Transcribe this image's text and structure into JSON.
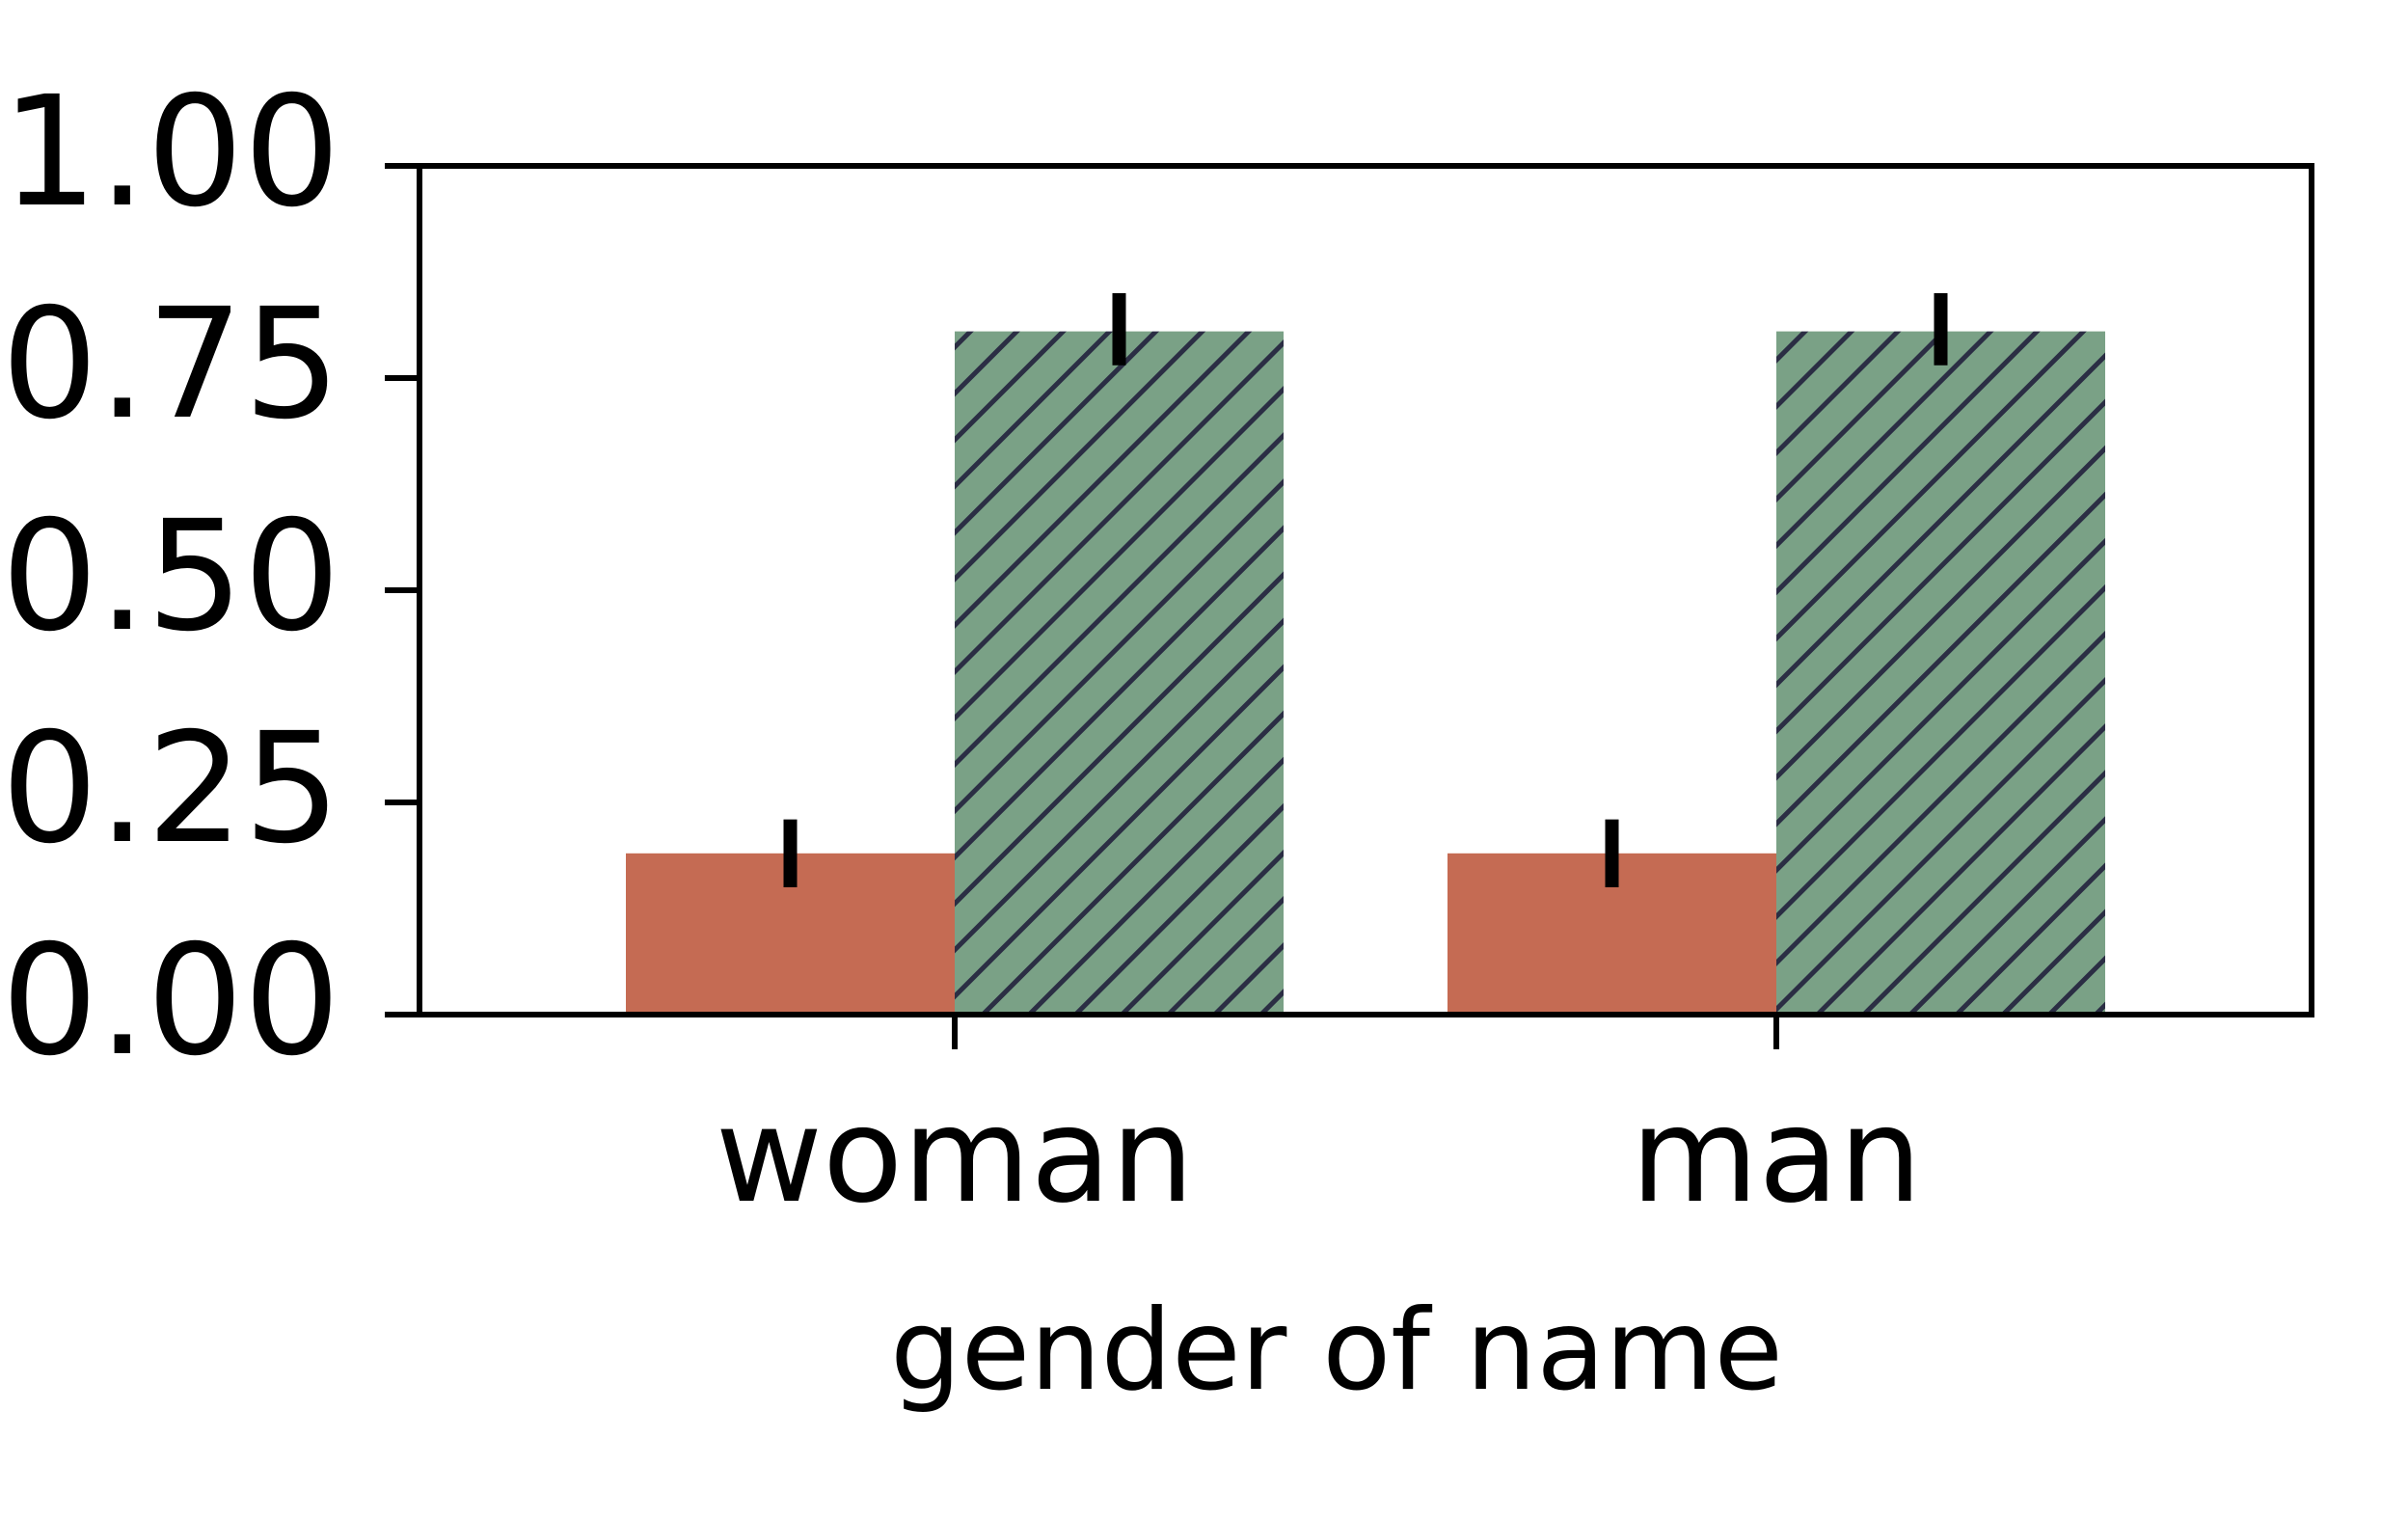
{
  "chart_data": {
    "type": "bar",
    "title": "",
    "xlabel": "gender of name",
    "ylabel": "",
    "categories": [
      "woman",
      "man"
    ],
    "ylim": [
      0,
      1
    ],
    "yticks": [
      "0.00",
      "0.25",
      "0.50",
      "0.75",
      "1.00"
    ],
    "grid": false,
    "legend": "none",
    "series": [
      {
        "color": "#c56b53",
        "hatch": false,
        "values": [
          0.19,
          0.19
        ],
        "error": [
          [
            0.15,
            0.23
          ],
          [
            0.15,
            0.23
          ]
        ]
      },
      {
        "color": "#7aa186",
        "hatch": true,
        "hatch_color": "#2b2e44",
        "values": [
          0.805,
          0.805
        ],
        "error": [
          [
            0.765,
            0.85
          ],
          [
            0.765,
            0.85
          ]
        ]
      }
    ]
  }
}
